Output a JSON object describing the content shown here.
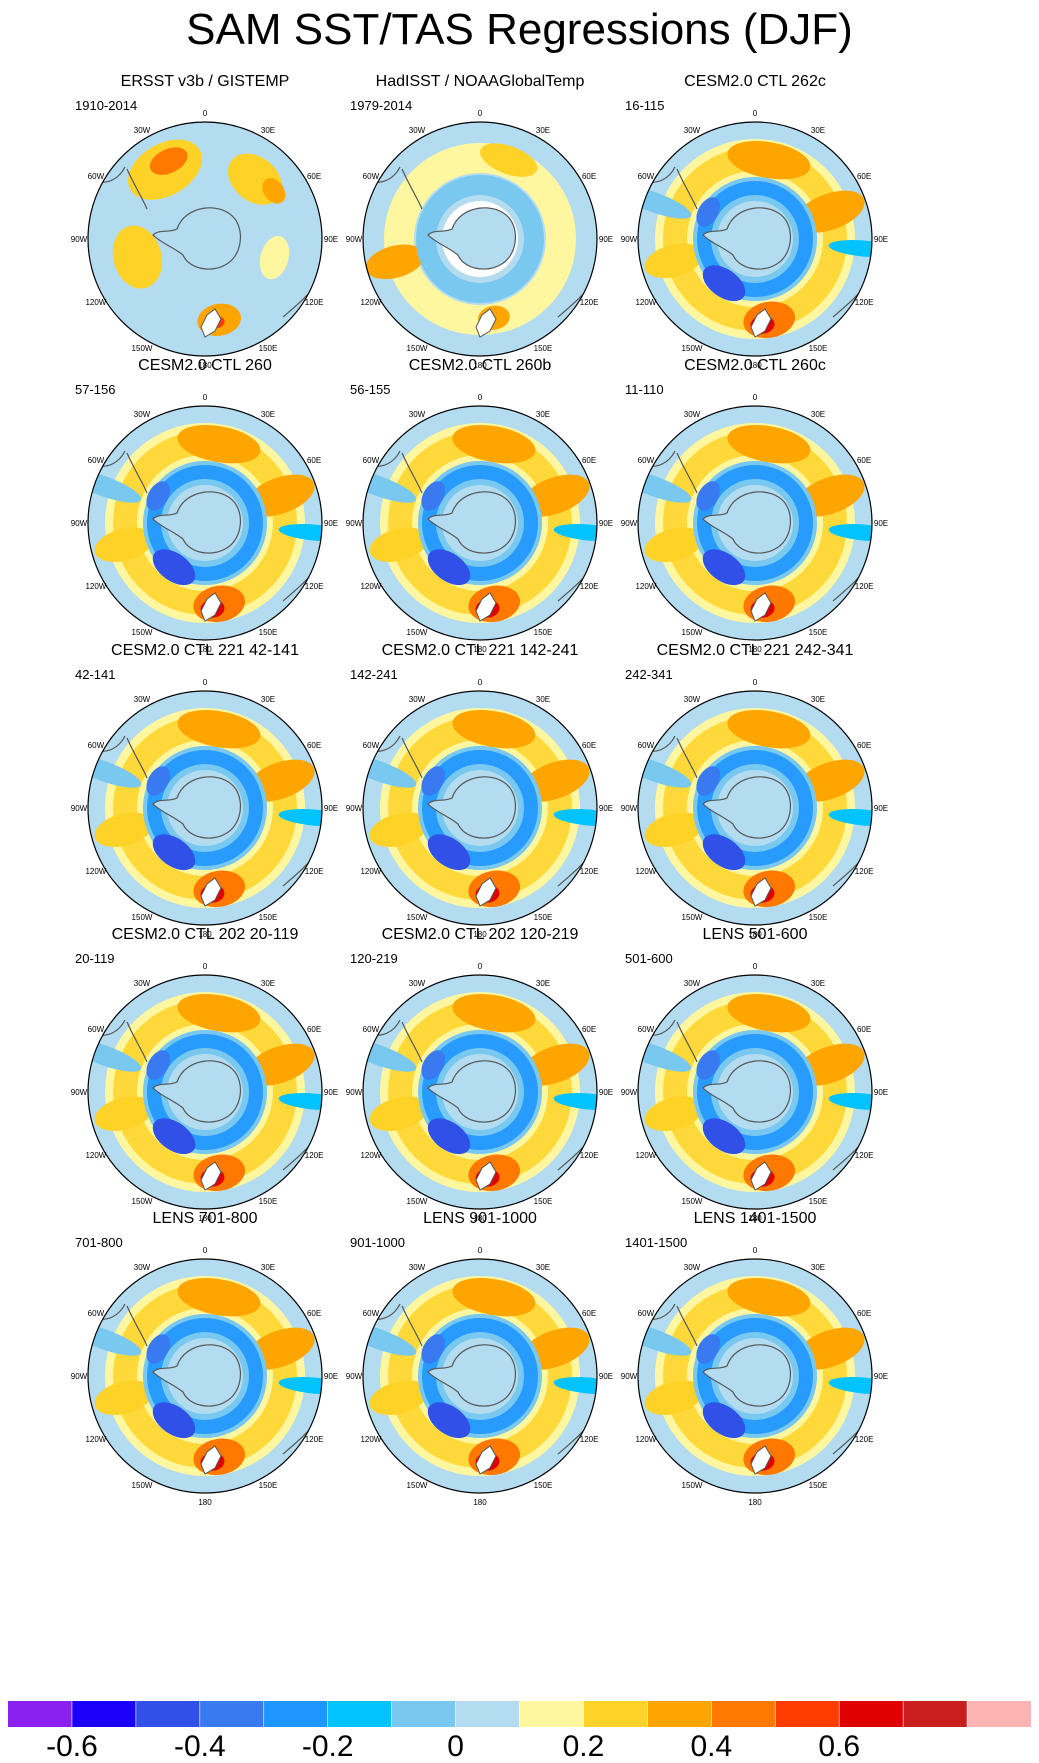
{
  "title": "SAM SST/TAS Regressions (DJF)",
  "lon_labels": [
    "0",
    "30E",
    "60E",
    "90E",
    "120E",
    "150E",
    "180",
    "150W",
    "120W",
    "90W",
    "60W",
    "30W"
  ],
  "panels": [
    {
      "title": "ERSST v3b / GISTEMP",
      "years": "1910-2014",
      "style": "obs1"
    },
    {
      "title": "HadISST / NOAAGlobalTemp",
      "years": "1979-2014",
      "style": "obs2"
    },
    {
      "title": "CESM2.0 CTL 262c",
      "years": "16-115",
      "style": "model"
    },
    {
      "title": "CESM2.0 CTL 260",
      "years": "57-156",
      "style": "model"
    },
    {
      "title": "CESM2.0 CTL 260b",
      "years": "56-155",
      "style": "model"
    },
    {
      "title": "CESM2.0 CTL 260c",
      "years": "11-110",
      "style": "model"
    },
    {
      "title": "CESM2.0 CTL 221 42-141",
      "years": "42-141",
      "style": "model"
    },
    {
      "title": "CESM2.0 CTL 221 142-241",
      "years": "142-241",
      "style": "model"
    },
    {
      "title": "CESM2.0 CTL 221 242-341",
      "years": "242-341",
      "style": "model"
    },
    {
      "title": "CESM2.0 CTL 202 20-119",
      "years": "20-119",
      "style": "model"
    },
    {
      "title": "CESM2.0 CTL 202 120-219",
      "years": "120-219",
      "style": "model"
    },
    {
      "title": "LENS 501-600",
      "years": "501-600",
      "style": "model"
    },
    {
      "title": "LENS 701-800",
      "years": "701-800",
      "style": "model"
    },
    {
      "title": "LENS 901-1000",
      "years": "901-1000",
      "style": "model"
    },
    {
      "title": "LENS 1401-1500",
      "years": "1401-1500",
      "style": "model"
    }
  ],
  "colorbar": {
    "colors": [
      "#8b21f0",
      "#1c00fa",
      "#3050e8",
      "#3a7af0",
      "#1e96ff",
      "#00c3ff",
      "#78c8f0",
      "#b4dcf0",
      "#fff7a0",
      "#ffd228",
      "#ffa500",
      "#ff7800",
      "#ff3c00",
      "#e10000",
      "#c81e1e",
      "#ffb4b4"
    ],
    "labels": [
      {
        "value": -0.6,
        "text": "-0.6"
      },
      {
        "value": -0.4,
        "text": "-0.4"
      },
      {
        "value": -0.2,
        "text": "-0.2"
      },
      {
        "value": 0,
        "text": "0"
      },
      {
        "value": 0.2,
        "text": "0.2"
      },
      {
        "value": 0.4,
        "text": "0.4"
      },
      {
        "value": 0.6,
        "text": "0.6"
      }
    ]
  },
  "chart_data": {
    "type": "heatmap",
    "title": "SAM SST/TAS Regressions (DJF)",
    "projection": "south polar stereographic",
    "colorbar_levels": [
      -0.7,
      -0.6,
      -0.5,
      -0.4,
      -0.3,
      -0.2,
      -0.1,
      0,
      0.1,
      0.2,
      0.3,
      0.4,
      0.5,
      0.6,
      0.7
    ],
    "colorbar_ticks": [
      -0.6,
      -0.4,
      -0.2,
      0,
      0.2,
      0.4,
      0.6
    ],
    "panels": [
      "ERSST v3b / GISTEMP",
      "HadISST / NOAAGlobalTemp",
      "CESM2.0 CTL 262c",
      "CESM2.0 CTL 260",
      "CESM2.0 CTL 260b",
      "CESM2.0 CTL 260c",
      "CESM2.0 CTL 221 42-141",
      "CESM2.0 CTL 221 142-241",
      "CESM2.0 CTL 221 242-341",
      "CESM2.0 CTL 202 20-119",
      "CESM2.0 CTL 202 120-219",
      "LENS 501-600",
      "LENS 701-800",
      "LENS 901-1000",
      "LENS 1401-1500"
    ],
    "periods": [
      "1910-2014",
      "1979-2014",
      "16-115",
      "57-156",
      "56-155",
      "11-110",
      "42-141",
      "142-241",
      "242-341",
      "20-119",
      "120-219",
      "501-600",
      "701-800",
      "901-1000",
      "1401-1500"
    ]
  }
}
